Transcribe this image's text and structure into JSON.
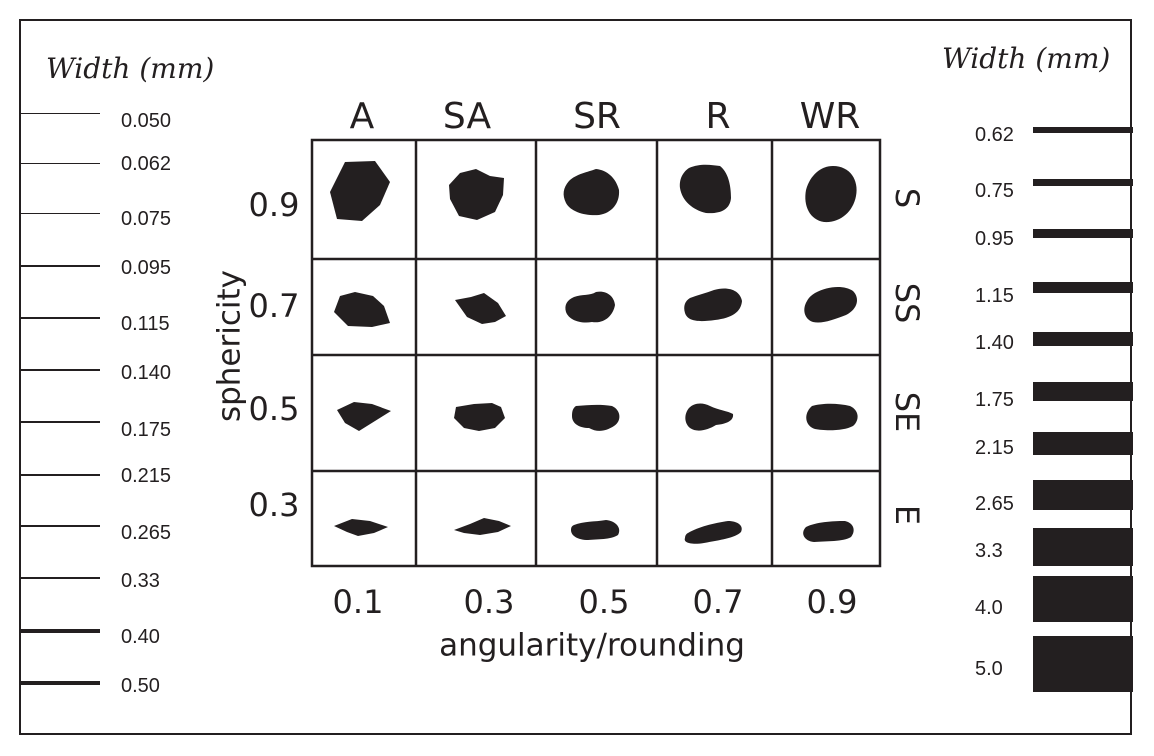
{
  "left_scale": {
    "title": "Width (mm)",
    "labels": [
      "0.050",
      "0.062",
      "0.075",
      "0.095",
      "0.115",
      "0.140",
      "0.175",
      "0.215",
      "0.265",
      "0.33",
      "0.40",
      "0.50"
    ]
  },
  "right_scale": {
    "title": "Width (mm)",
    "labels": [
      "0.62",
      "0.75",
      "0.95",
      "1.15",
      "1.40",
      "1.75",
      "2.15",
      "2.65",
      "3.3",
      "4.0",
      "5.0"
    ]
  },
  "grid": {
    "columns": [
      "A",
      "SA",
      "SR",
      "R",
      "WR"
    ],
    "rows": [
      "S",
      "SS",
      "SE",
      "E"
    ],
    "sphericity_values": [
      "0.9",
      "0.7",
      "0.5",
      "0.3"
    ],
    "angularity_values": [
      "0.1",
      "0.3",
      "0.5",
      "0.7",
      "0.9"
    ],
    "y_axis_label": "sphericity",
    "x_axis_label": "angularity/rounding",
    "fill_color": "#231f20"
  }
}
